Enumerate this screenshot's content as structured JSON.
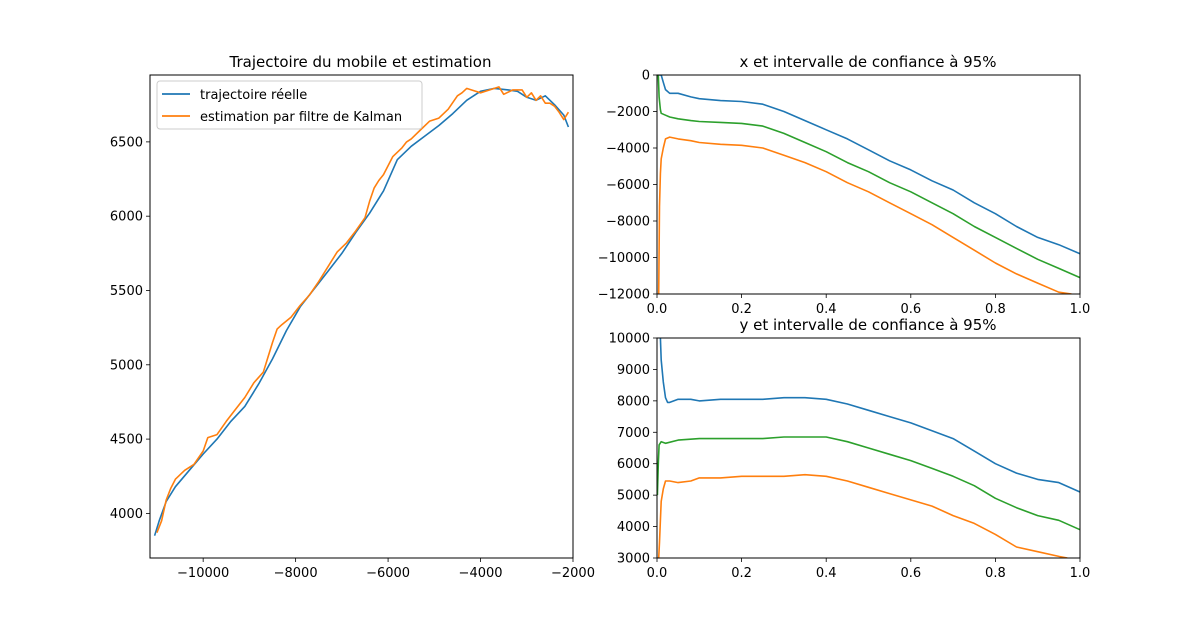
{
  "chart_data": [
    {
      "type": "line",
      "title": "Trajectoire du mobile et estimation",
      "xlabel": "",
      "ylabel": "",
      "xlim": [
        -11150,
        -2000
      ],
      "ylim": [
        3700,
        6950
      ],
      "xticks": [
        -10000,
        -8000,
        -6000,
        -4000,
        -2000
      ],
      "yticks": [
        4000,
        4500,
        5000,
        5500,
        6000,
        6500
      ],
      "xtick_labels": [
        "−10000",
        "−8000",
        "−6000",
        "−4000",
        "−2000"
      ],
      "ytick_labels": [
        "4000",
        "4500",
        "5000",
        "5500",
        "6000",
        "6500"
      ],
      "legend": {
        "position": "top-left",
        "entries": [
          "trajectoire réelle",
          "estimation par filtre de Kalman"
        ]
      },
      "grid": false,
      "series": [
        {
          "name": "trajectoire réelle",
          "color": "#1f77b4",
          "x": [
            -11050,
            -10950,
            -10800,
            -10600,
            -10300,
            -10000,
            -9700,
            -9400,
            -9100,
            -8800,
            -8500,
            -8200,
            -7900,
            -7600,
            -7300,
            -7000,
            -6700,
            -6400,
            -6100,
            -5800,
            -5500,
            -5200,
            -4900,
            -4600,
            -4300,
            -4000,
            -3700,
            -3400,
            -3200,
            -3000,
            -2800,
            -2600,
            -2400,
            -2200,
            -2100
          ],
          "y": [
            3850,
            3950,
            4080,
            4180,
            4290,
            4400,
            4500,
            4620,
            4720,
            4870,
            5040,
            5230,
            5390,
            5510,
            5630,
            5750,
            5890,
            6020,
            6170,
            6380,
            6470,
            6540,
            6610,
            6690,
            6780,
            6840,
            6860,
            6850,
            6840,
            6800,
            6780,
            6810,
            6750,
            6680,
            6600
          ]
        },
        {
          "name": "estimation par filtre de Kalman",
          "color": "#ff7f0e",
          "x": [
            -11000,
            -10900,
            -10800,
            -10700,
            -10600,
            -10400,
            -10200,
            -10000,
            -9900,
            -9700,
            -9500,
            -9300,
            -9100,
            -8900,
            -8700,
            -8600,
            -8500,
            -8400,
            -8300,
            -8100,
            -7900,
            -7700,
            -7500,
            -7300,
            -7100,
            -6900,
            -6700,
            -6500,
            -6400,
            -6300,
            -6200,
            -6100,
            -5900,
            -5800,
            -5700,
            -5600,
            -5500,
            -5300,
            -5100,
            -4900,
            -4700,
            -4500,
            -4400,
            -4300,
            -4200,
            -4000,
            -3800,
            -3700,
            -3600,
            -3500,
            -3300,
            -3100,
            -3000,
            -2900,
            -2800,
            -2700,
            -2600,
            -2500,
            -2400,
            -2300,
            -2200,
            -2100
          ],
          "y": [
            3870,
            3950,
            4090,
            4170,
            4230,
            4290,
            4330,
            4420,
            4510,
            4530,
            4620,
            4700,
            4780,
            4880,
            4950,
            5050,
            5150,
            5240,
            5270,
            5320,
            5400,
            5470,
            5560,
            5660,
            5760,
            5820,
            5900,
            5990,
            6100,
            6190,
            6240,
            6280,
            6400,
            6430,
            6460,
            6500,
            6520,
            6580,
            6640,
            6660,
            6720,
            6810,
            6830,
            6860,
            6850,
            6830,
            6850,
            6860,
            6870,
            6820,
            6850,
            6850,
            6800,
            6830,
            6780,
            6810,
            6760,
            6760,
            6740,
            6700,
            6650,
            6700
          ]
        }
      ]
    },
    {
      "type": "line",
      "title": "x et intervalle de confiance à 95%",
      "xlabel": "",
      "ylabel": "",
      "xlim": [
        0,
        1
      ],
      "ylim": [
        -12000,
        0
      ],
      "xticks": [
        0.0,
        0.2,
        0.4,
        0.6,
        0.8,
        1.0
      ],
      "yticks": [
        -12000,
        -10000,
        -8000,
        -6000,
        -4000,
        -2000,
        0
      ],
      "xtick_labels": [
        "0.0",
        "0.2",
        "0.4",
        "0.6",
        "0.8",
        "1.0"
      ],
      "ytick_labels": [
        "−12000",
        "−10000",
        "−8000",
        "−6000",
        "−4000",
        "−2000",
        "0"
      ],
      "grid": false,
      "series": [
        {
          "color": "#1f77b4",
          "x": [
            0.005,
            0.01,
            0.015,
            0.02,
            0.03,
            0.05,
            0.08,
            0.1,
            0.15,
            0.2,
            0.25,
            0.3,
            0.35,
            0.4,
            0.45,
            0.5,
            0.55,
            0.6,
            0.65,
            0.7,
            0.75,
            0.8,
            0.85,
            0.9,
            0.95,
            1.0
          ],
          "y": [
            0,
            0,
            -400,
            -800,
            -1000,
            -1000,
            -1200,
            -1300,
            -1400,
            -1450,
            -1600,
            -2000,
            -2500,
            -3000,
            -3500,
            -4100,
            -4700,
            -5200,
            -5800,
            -6300,
            -7000,
            -7600,
            -8300,
            -8900,
            -9300,
            -9800
          ]
        },
        {
          "color": "#2ca02c",
          "x": [
            0.003,
            0.005,
            0.008,
            0.01,
            0.02,
            0.03,
            0.05,
            0.08,
            0.1,
            0.15,
            0.2,
            0.25,
            0.3,
            0.35,
            0.4,
            0.45,
            0.5,
            0.55,
            0.6,
            0.65,
            0.7,
            0.75,
            0.8,
            0.85,
            0.9,
            0.95,
            1.0
          ],
          "y": [
            0,
            -1200,
            -1900,
            -2100,
            -2200,
            -2300,
            -2400,
            -2500,
            -2550,
            -2600,
            -2650,
            -2800,
            -3200,
            -3700,
            -4200,
            -4800,
            -5300,
            -5900,
            -6400,
            -7000,
            -7600,
            -8300,
            -8900,
            -9500,
            -10100,
            -10600,
            -11100
          ]
        },
        {
          "color": "#ff7f0e",
          "x": [
            0.004,
            0.006,
            0.008,
            0.01,
            0.015,
            0.02,
            0.03,
            0.05,
            0.08,
            0.1,
            0.15,
            0.2,
            0.25,
            0.3,
            0.35,
            0.4,
            0.45,
            0.5,
            0.55,
            0.6,
            0.65,
            0.7,
            0.75,
            0.8,
            0.85,
            0.9,
            0.95,
            0.98
          ],
          "y": [
            -12000,
            -7200,
            -5400,
            -4600,
            -4000,
            -3500,
            -3400,
            -3500,
            -3600,
            -3700,
            -3800,
            -3850,
            -4000,
            -4400,
            -4800,
            -5300,
            -5900,
            -6400,
            -7000,
            -7600,
            -8200,
            -8900,
            -9600,
            -10300,
            -10900,
            -11400,
            -11900,
            -12000
          ]
        }
      ]
    },
    {
      "type": "line",
      "title": "y et intervalle de confiance à 95%",
      "xlabel": "",
      "ylabel": "",
      "xlim": [
        0,
        1
      ],
      "ylim": [
        3000,
        10000
      ],
      "xticks": [
        0.0,
        0.2,
        0.4,
        0.6,
        0.8,
        1.0
      ],
      "yticks": [
        3000,
        4000,
        5000,
        6000,
        7000,
        8000,
        9000,
        10000
      ],
      "xtick_labels": [
        "0.0",
        "0.2",
        "0.4",
        "0.6",
        "0.8",
        "1.0"
      ],
      "ytick_labels": [
        "3000",
        "4000",
        "5000",
        "6000",
        "7000",
        "8000",
        "9000",
        "10000"
      ],
      "grid": false,
      "series": [
        {
          "color": "#1f77b4",
          "x": [
            0.008,
            0.01,
            0.015,
            0.02,
            0.025,
            0.03,
            0.05,
            0.08,
            0.1,
            0.15,
            0.2,
            0.25,
            0.3,
            0.35,
            0.4,
            0.45,
            0.5,
            0.55,
            0.6,
            0.65,
            0.7,
            0.75,
            0.8,
            0.85,
            0.9,
            0.95,
            1.0
          ],
          "y": [
            10000,
            9300,
            8600,
            8100,
            7950,
            7950,
            8050,
            8050,
            8000,
            8050,
            8050,
            8050,
            8100,
            8100,
            8050,
            7900,
            7700,
            7500,
            7300,
            7050,
            6800,
            6400,
            6000,
            5700,
            5500,
            5400,
            5100
          ]
        },
        {
          "color": "#2ca02c",
          "x": [
            0.001,
            0.003,
            0.005,
            0.01,
            0.02,
            0.05,
            0.1,
            0.15,
            0.2,
            0.25,
            0.3,
            0.35,
            0.4,
            0.45,
            0.5,
            0.55,
            0.6,
            0.65,
            0.7,
            0.75,
            0.8,
            0.85,
            0.9,
            0.95,
            1.0
          ],
          "y": [
            5000,
            6000,
            6600,
            6700,
            6650,
            6750,
            6800,
            6800,
            6800,
            6800,
            6850,
            6850,
            6850,
            6700,
            6500,
            6300,
            6100,
            5850,
            5600,
            5300,
            4900,
            4600,
            4350,
            4200,
            3900
          ]
        },
        {
          "color": "#ff7f0e",
          "x": [
            0.004,
            0.006,
            0.008,
            0.01,
            0.015,
            0.02,
            0.03,
            0.05,
            0.08,
            0.1,
            0.15,
            0.2,
            0.25,
            0.3,
            0.35,
            0.4,
            0.45,
            0.5,
            0.55,
            0.6,
            0.65,
            0.7,
            0.75,
            0.8,
            0.85,
            0.9,
            0.95,
            0.97
          ],
          "y": [
            3000,
            3500,
            4200,
            4800,
            5200,
            5450,
            5450,
            5400,
            5450,
            5550,
            5550,
            5600,
            5600,
            5600,
            5650,
            5600,
            5450,
            5250,
            5050,
            4850,
            4650,
            4350,
            4100,
            3750,
            3350,
            3200,
            3050,
            3000
          ]
        }
      ]
    }
  ]
}
